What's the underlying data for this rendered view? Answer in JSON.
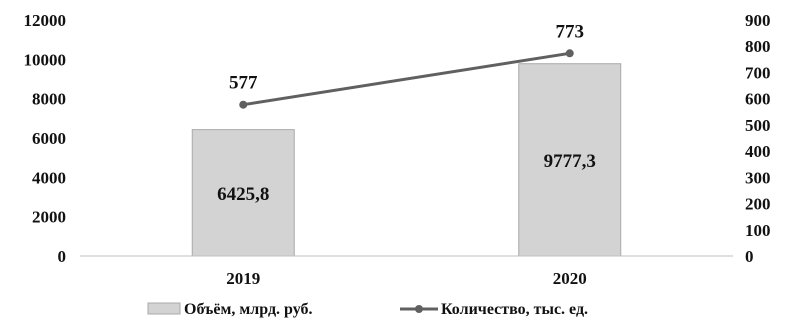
{
  "chart_data": {
    "type": "bar+line",
    "categories": [
      "2019",
      "2020"
    ],
    "series": [
      {
        "name": "Объём, млрд. руб.",
        "type": "bar",
        "axis": "left",
        "values": [
          6425.8,
          9777.3
        ],
        "labels": [
          "6425,8",
          "9777,3"
        ],
        "color": "#d3d3d3",
        "border": "#a9a9a9"
      },
      {
        "name": "Количество, тыс. ед.",
        "type": "line",
        "axis": "right",
        "values": [
          577,
          773
        ],
        "labels": [
          "577",
          "773"
        ],
        "color": "#606060"
      }
    ],
    "y_left": {
      "range": [
        0,
        12000
      ],
      "ticks": [
        "0",
        "2000",
        "4000",
        "6000",
        "8000",
        "10000",
        "12000"
      ]
    },
    "y_right": {
      "range": [
        0,
        900
      ],
      "ticks": [
        "0",
        "100",
        "200",
        "300",
        "400",
        "500",
        "600",
        "700",
        "800",
        "900"
      ]
    },
    "grid": false,
    "legend": "bottom"
  }
}
